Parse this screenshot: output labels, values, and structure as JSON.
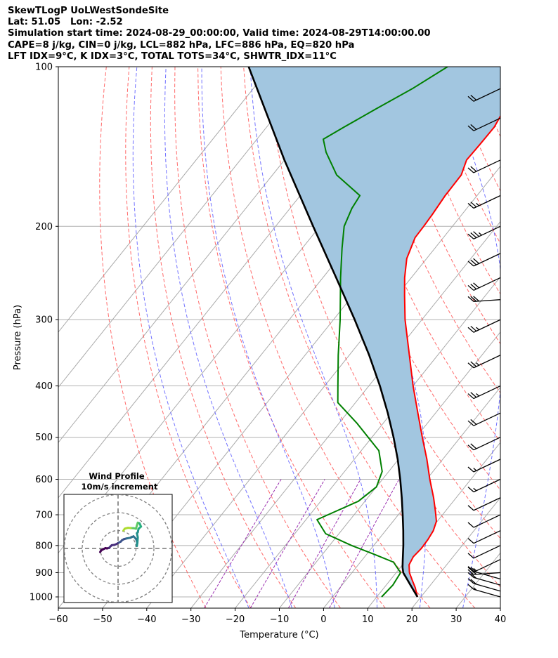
{
  "header": {
    "line1": "SkewTLogP UoLWestSondeSite",
    "line2": "Lat: 51.05   Lon: -2.52",
    "line3": "Simulation start time: 2024-08-29_00:00:00, Valid time: 2024-08-29T14:00:00.00",
    "line4": "CAPE=8 j/kg, CIN=0 j/kg, LCL=882 hPa, LFC=886 hPa, EQ=820 hPa",
    "line5": "LFT IDX=9°C, K IDX=3°C, TOTAL TOTS=34°C, SHWTR_IDX=11°C"
  },
  "chart_data": {
    "type": "line",
    "xlabel": "Temperature (°C)",
    "ylabel": "Pressure (hPa)",
    "xlim": [
      -60,
      40
    ],
    "ylim": [
      1050,
      100
    ],
    "y_scale": "log",
    "grid": true,
    "x_ticks": [
      -60,
      -50,
      -40,
      -30,
      -20,
      -10,
      0,
      10,
      20,
      30,
      40
    ],
    "y_ticks": [
      100,
      200,
      300,
      400,
      500,
      600,
      700,
      800,
      900,
      1000
    ],
    "skew": true,
    "series": [
      {
        "id": "temperature",
        "color": "#ff0000",
        "points": [
          {
            "p": 1000,
            "t": 19.2
          },
          {
            "p": 960,
            "t": 17.0
          },
          {
            "p": 930,
            "t": 15.0
          },
          {
            "p": 900,
            "t": 13.0
          },
          {
            "p": 870,
            "t": 11.5
          },
          {
            "p": 840,
            "t": 11.0
          },
          {
            "p": 810,
            "t": 11.3
          },
          {
            "p": 780,
            "t": 11.2
          },
          {
            "p": 750,
            "t": 10.8
          },
          {
            "p": 720,
            "t": 9.8
          },
          {
            "p": 690,
            "t": 7.8
          },
          {
            "p": 650,
            "t": 4.9
          },
          {
            "p": 600,
            "t": 0.7
          },
          {
            "p": 550,
            "t": -3.6
          },
          {
            "p": 500,
            "t": -8.6
          },
          {
            "p": 450,
            "t": -14.0
          },
          {
            "p": 400,
            "t": -20.0
          },
          {
            "p": 350,
            "t": -26.4
          },
          {
            "p": 300,
            "t": -33.8
          },
          {
            "p": 270,
            "t": -38.3
          },
          {
            "p": 250,
            "t": -41.5
          },
          {
            "p": 230,
            "t": -44.5
          },
          {
            "p": 210,
            "t": -46.4
          },
          {
            "p": 200,
            "t": -46.5
          },
          {
            "p": 190,
            "t": -46.7
          },
          {
            "p": 175,
            "t": -47.2
          },
          {
            "p": 160,
            "t": -47.3
          },
          {
            "p": 150,
            "t": -48.8
          },
          {
            "p": 140,
            "t": -48.6
          },
          {
            "p": 130,
            "t": -48.5
          },
          {
            "p": 120,
            "t": -49.5
          },
          {
            "p": 110,
            "t": -50.4
          },
          {
            "p": 100,
            "t": -51.4
          }
        ]
      },
      {
        "id": "dewpoint",
        "color": "#008000",
        "points": [
          {
            "p": 1000,
            "t": 11.1
          },
          {
            "p": 950,
            "t": 11.5
          },
          {
            "p": 900,
            "t": 11.0
          },
          {
            "p": 860,
            "t": 7.5
          },
          {
            "p": 830,
            "t": 1.5
          },
          {
            "p": 800,
            "t": -5.0
          },
          {
            "p": 760,
            "t": -13.0
          },
          {
            "p": 715,
            "t": -17.5
          },
          {
            "p": 660,
            "t": -11.5
          },
          {
            "p": 620,
            "t": -10.0
          },
          {
            "p": 580,
            "t": -11.5
          },
          {
            "p": 530,
            "t": -16.0
          },
          {
            "p": 470,
            "t": -26.0
          },
          {
            "p": 430,
            "t": -34.0
          },
          {
            "p": 400,
            "t": -37.0
          },
          {
            "p": 350,
            "t": -42.5
          },
          {
            "p": 300,
            "t": -48.5
          },
          {
            "p": 250,
            "t": -56.0
          },
          {
            "p": 220,
            "t": -61.0
          },
          {
            "p": 200,
            "t": -64.5
          },
          {
            "p": 185,
            "t": -66.0
          },
          {
            "p": 175,
            "t": -66.5
          },
          {
            "p": 160,
            "t": -75.5
          },
          {
            "p": 145,
            "t": -82.0
          },
          {
            "p": 137,
            "t": -85.0
          },
          {
            "p": 130,
            "t": -82.5
          },
          {
            "p": 120,
            "t": -78.5
          },
          {
            "p": 110,
            "t": -74.0
          },
          {
            "p": 100,
            "t": -70.0
          }
        ]
      },
      {
        "id": "parcel",
        "color": "#000000",
        "points": [
          {
            "p": 1000,
            "t": 19.2
          },
          {
            "p": 950,
            "t": 15.5
          },
          {
            "p": 900,
            "t": 11.6
          },
          {
            "p": 880,
            "t": 10.5
          },
          {
            "p": 850,
            "t": 9.1
          },
          {
            "p": 800,
            "t": 6.7
          },
          {
            "p": 750,
            "t": 4.0
          },
          {
            "p": 700,
            "t": 1.0
          },
          {
            "p": 650,
            "t": -2.3
          },
          {
            "p": 600,
            "t": -6.0
          },
          {
            "p": 550,
            "t": -10.2
          },
          {
            "p": 500,
            "t": -15.1
          },
          {
            "p": 450,
            "t": -20.8
          },
          {
            "p": 400,
            "t": -27.5
          },
          {
            "p": 350,
            "t": -35.5
          },
          {
            "p": 300,
            "t": -45.2
          },
          {
            "p": 250,
            "t": -57.0
          },
          {
            "p": 200,
            "t": -71.5
          },
          {
            "p": 150,
            "t": -90.0
          },
          {
            "p": 100,
            "t": -115.0
          }
        ]
      }
    ],
    "shaded_region": {
      "between": [
        "temperature",
        "parcel"
      ],
      "color": "#a2c6e0"
    },
    "dry_adiabat_thetas_c": [
      -30,
      -20,
      -10,
      0,
      10,
      20,
      30,
      40,
      50,
      60,
      70,
      80,
      90,
      100,
      110,
      120,
      130
    ],
    "moist_adiabat_base_temps_c": [
      -20,
      -10,
      0,
      10,
      20,
      30,
      40
    ],
    "isotherms_c": [
      -110,
      -100,
      -90,
      -80,
      -70,
      -60,
      -50,
      -40,
      -30,
      -20,
      -10,
      0,
      10,
      20,
      30,
      40
    ],
    "wind_barbs": [
      {
        "p": 1000,
        "speed_kt": 15,
        "dir_deg": 290
      },
      {
        "p": 975,
        "speed_kt": 20,
        "dir_deg": 290
      },
      {
        "p": 950,
        "speed_kt": 20,
        "dir_deg": 285
      },
      {
        "p": 925,
        "speed_kt": 20,
        "dir_deg": 285
      },
      {
        "p": 900,
        "speed_kt": 15,
        "dir_deg": 275
      },
      {
        "p": 850,
        "speed_kt": 15,
        "dir_deg": 265
      },
      {
        "p": 800,
        "speed_kt": 10,
        "dir_deg": 265
      },
      {
        "p": 750,
        "speed_kt": 10,
        "dir_deg": 260
      },
      {
        "p": 700,
        "speed_kt": 10,
        "dir_deg": 250
      },
      {
        "p": 650,
        "speed_kt": 10,
        "dir_deg": 250
      },
      {
        "p": 600,
        "speed_kt": 15,
        "dir_deg": 250
      },
      {
        "p": 550,
        "speed_kt": 15,
        "dir_deg": 250
      },
      {
        "p": 500,
        "speed_kt": 20,
        "dir_deg": 250
      },
      {
        "p": 450,
        "speed_kt": 20,
        "dir_deg": 255
      },
      {
        "p": 400,
        "speed_kt": 25,
        "dir_deg": 250
      },
      {
        "p": 350,
        "speed_kt": 25,
        "dir_deg": 250
      },
      {
        "p": 300,
        "speed_kt": 25,
        "dir_deg": 260
      },
      {
        "p": 275,
        "speed_kt": 30,
        "dir_deg": 270
      },
      {
        "p": 250,
        "speed_kt": 30,
        "dir_deg": 250
      },
      {
        "p": 225,
        "speed_kt": 30,
        "dir_deg": 250
      },
      {
        "p": 200,
        "speed_kt": 35,
        "dir_deg": 250
      },
      {
        "p": 175,
        "speed_kt": 25,
        "dir_deg": 250
      },
      {
        "p": 150,
        "speed_kt": 20,
        "dir_deg": 250
      },
      {
        "p": 125,
        "speed_kt": 20,
        "dir_deg": 250
      },
      {
        "p": 110,
        "speed_kt": 20,
        "dir_deg": 250
      }
    ],
    "hodograph": {
      "title": "Wind Profile",
      "subtitle": "10m/s increment",
      "ring_radii_ms": [
        10,
        20,
        30
      ],
      "points_uv": [
        [
          -10.0,
          -2.0
        ],
        [
          -9.3,
          -1.0
        ],
        [
          -8.0,
          -0.3
        ],
        [
          -7.0,
          0.2
        ],
        [
          -6.2,
          0.0
        ],
        [
          -5.0,
          0.3
        ],
        [
          -4.2,
          1.2
        ],
        [
          -3.5,
          1.8
        ],
        [
          -2.0,
          2.0
        ],
        [
          -1.0,
          2.4
        ],
        [
          0.5,
          3.3
        ],
        [
          1.5,
          3.8
        ],
        [
          2.2,
          4.6
        ],
        [
          3.3,
          5.2
        ],
        [
          4.8,
          5.6
        ],
        [
          7.0,
          6.0
        ],
        [
          8.6,
          6.8
        ],
        [
          10.1,
          5.2
        ],
        [
          10.6,
          3.6
        ],
        [
          10.5,
          1.4
        ],
        [
          10.8,
          3.3
        ],
        [
          11.0,
          6.2
        ],
        [
          10.5,
          8.5
        ],
        [
          11.0,
          9.0
        ],
        [
          11.4,
          10.9
        ],
        [
          12.0,
          11.5
        ],
        [
          12.8,
          12.2
        ],
        [
          12.0,
          14.0
        ],
        [
          11.0,
          14.4
        ],
        [
          10.5,
          12.8
        ],
        [
          10.0,
          11.0
        ],
        [
          9.5,
          11.2
        ],
        [
          8.7,
          11.3
        ],
        [
          7.0,
          11.4
        ],
        [
          5.5,
          11.5
        ],
        [
          4.5,
          11.3
        ],
        [
          3.7,
          11.0
        ],
        [
          3.0,
          10.0
        ]
      ],
      "colormap": "viridis"
    }
  }
}
